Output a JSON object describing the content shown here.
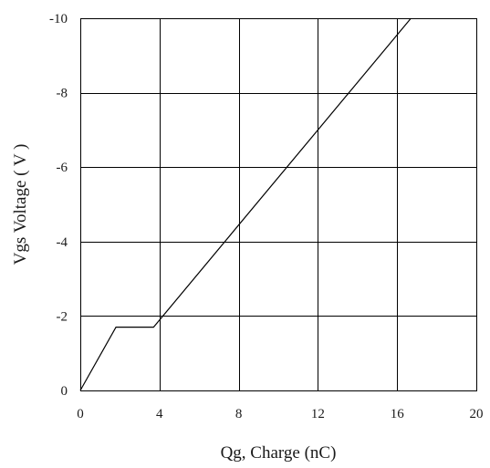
{
  "chart_data": {
    "type": "line",
    "title": "",
    "xlabel": "Qg, Charge (nC)",
    "ylabel": "Vgs Voltage ( V )",
    "xlim": [
      0,
      20
    ],
    "ylim": [
      0,
      -10
    ],
    "y_axis_inverted": true,
    "grid": true,
    "xticks": [
      0,
      4,
      8,
      12,
      16,
      20
    ],
    "xtick_labels": [
      "0",
      "4",
      "8",
      "12",
      "16",
      "20"
    ],
    "yticks": [
      0,
      -2,
      -4,
      -6,
      -8,
      -10
    ],
    "ytick_labels": [
      "0",
      "-2",
      "-4",
      "-6",
      "-8",
      "-10"
    ],
    "series": [
      {
        "x": [
          0,
          1.8,
          3.7,
          16.7
        ],
        "y": [
          0,
          -1.7,
          -1.7,
          -10
        ],
        "color": "#000000"
      }
    ]
  }
}
